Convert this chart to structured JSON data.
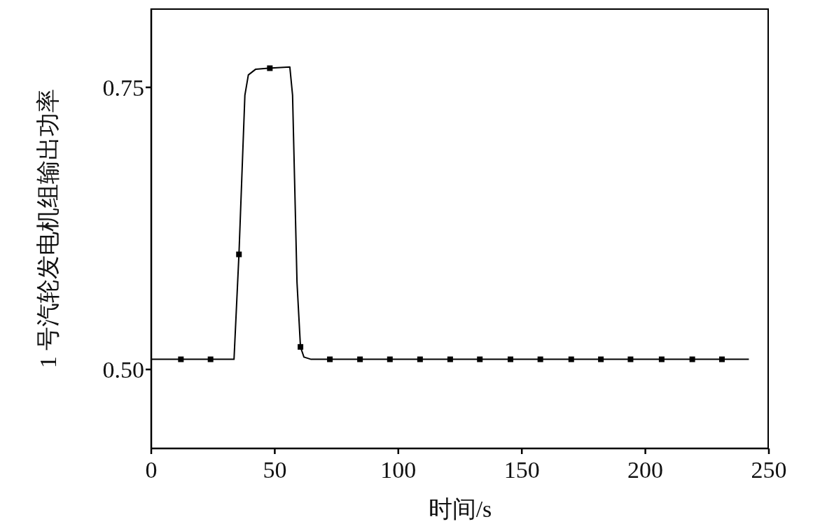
{
  "chart_data": {
    "type": "line",
    "xlabel": "时间/s",
    "ylabel": "1 号汽轮发电机组输出功率",
    "xlim": [
      0,
      250
    ],
    "xticks": [
      0,
      50,
      100,
      150,
      200,
      250
    ],
    "ylim": [
      0.43,
      0.82
    ],
    "yticks": [
      {
        "value": 0.5,
        "label": "0.50"
      },
      {
        "value": 0.75,
        "label": "0.75"
      }
    ],
    "grid": false,
    "line_style": "solid",
    "series": [
      {
        "marker": "none",
        "color": "#000000",
        "x": [
          0,
          33.5,
          35.5,
          37.9,
          39.3,
          42.2,
          47.4,
          56.1,
          57.2,
          59,
          60.4,
          61.8,
          64.7,
          241.9
        ],
        "values": [
          0.509,
          0.509,
          0.602,
          0.743,
          0.761,
          0.766,
          0.767,
          0.768,
          0.743,
          0.577,
          0.52,
          0.511,
          0.509,
          0.509
        ]
      },
      {
        "type": "scatter",
        "marker": "square",
        "color": "#000000",
        "x": [
          12,
          24,
          35.5,
          48,
          60.4,
          72.3,
          84.5,
          96.6,
          108.8,
          121,
          133,
          145.4,
          157.5,
          170,
          182,
          194,
          206.6,
          219,
          231
        ],
        "values": [
          0.509,
          0.509,
          0.602,
          0.767,
          0.52,
          0.509,
          0.509,
          0.509,
          0.509,
          0.509,
          0.509,
          0.509,
          0.509,
          0.509,
          0.509,
          0.509,
          0.509,
          0.509,
          0.509
        ]
      }
    ]
  }
}
